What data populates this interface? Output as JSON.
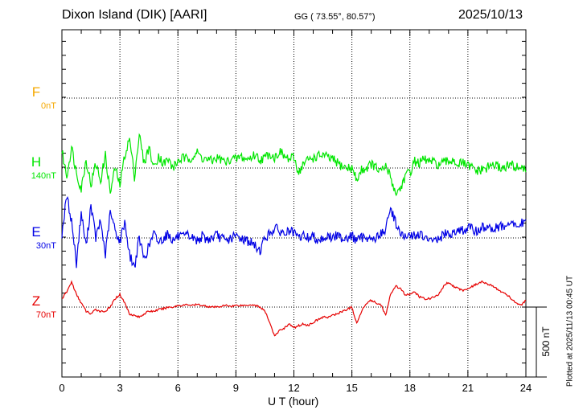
{
  "header": {
    "station": "Dixon Island (DIK)  [AARI]",
    "coords": "GG ( 73.55°,  80.57°)",
    "date": "2025/10/13"
  },
  "plotted_note": "Plotted at 2025/11/13 00:45 UT",
  "chart_data": {
    "type": "line",
    "title": "Dixon Island (DIK)  [AARI]",
    "xlabel": "U T (hour)",
    "xlim": [
      0,
      24
    ],
    "x_ticks": [
      "0",
      "3",
      "6",
      "9",
      "12",
      "15",
      "18",
      "21",
      "24"
    ],
    "x_step_hours": 0.25,
    "scale_bar": {
      "label": "500 nT",
      "value_nT": 500
    },
    "grid": true,
    "series": [
      {
        "name": "F",
        "baseline_label": "0nT",
        "color": "#f5a800",
        "noise_nT": 0,
        "values": []
      },
      {
        "name": "H",
        "baseline_label": "140nT",
        "color": "#00e600",
        "noise_nT": 60,
        "values": [
          120,
          -60,
          150,
          -30,
          -150,
          60,
          -120,
          30,
          -90,
          90,
          -180,
          0,
          -120,
          90,
          210,
          -60,
          240,
          30,
          150,
          0,
          90,
          30,
          60,
          0,
          48,
          72,
          60,
          84,
          108,
          72,
          60,
          48,
          72,
          60,
          36,
          72,
          60,
          84,
          60,
          72,
          96,
          60,
          72,
          108,
          72,
          120,
          84,
          60,
          72,
          -30,
          30,
          60,
          72,
          84,
          96,
          72,
          60,
          36,
          12,
          0,
          0,
          -90,
          -12,
          0,
          30,
          0,
          -30,
          12,
          -60,
          -180,
          -150,
          -60,
          -30,
          48,
          36,
          60,
          48,
          36,
          24,
          36,
          48,
          60,
          24,
          36,
          12,
          0,
          -24,
          -12,
          0,
          24,
          12,
          0,
          12,
          24,
          0,
          12,
          -30
        ]
      },
      {
        "name": "E",
        "baseline_label": "30nT",
        "color": "#0000e6",
        "noise_nT": 60,
        "values": [
          30,
          300,
          120,
          -180,
          180,
          -60,
          240,
          0,
          120,
          -120,
          180,
          60,
          -30,
          120,
          -120,
          -210,
          0,
          -150,
          -60,
          30,
          -30,
          0,
          30,
          -18,
          12,
          0,
          18,
          0,
          -18,
          12,
          -12,
          0,
          18,
          0,
          -24,
          0,
          12,
          0,
          -12,
          -30,
          -60,
          -90,
          0,
          30,
          72,
          48,
          30,
          48,
          30,
          0,
          18,
          0,
          12,
          -12,
          0,
          12,
          0,
          18,
          0,
          6,
          12,
          -18,
          0,
          12,
          -12,
          0,
          30,
          60,
          210,
          120,
          30,
          0,
          12,
          18,
          30,
          0,
          -30,
          0,
          -18,
          30,
          18,
          48,
          60,
          48,
          72,
          60,
          48,
          72,
          84,
          60,
          72,
          84,
          72,
          108,
          84,
          96,
          132
        ]
      },
      {
        "name": "Z",
        "baseline_label": "70nT",
        "color": "#e60000",
        "noise_nT": 12,
        "values": [
          60,
          108,
          180,
          90,
          30,
          -30,
          -48,
          -18,
          -30,
          -30,
          0,
          60,
          90,
          30,
          -48,
          -60,
          -72,
          -48,
          -30,
          -30,
          -18,
          -12,
          0,
          0,
          12,
          12,
          18,
          12,
          18,
          12,
          6,
          0,
          0,
          6,
          12,
          6,
          12,
          12,
          12,
          18,
          12,
          0,
          -30,
          -108,
          -210,
          -168,
          -150,
          -120,
          -150,
          -132,
          -120,
          -132,
          -108,
          -90,
          -72,
          -72,
          -60,
          -48,
          -30,
          -18,
          0,
          -120,
          -30,
          30,
          48,
          30,
          18,
          -60,
          90,
          150,
          132,
          90,
          90,
          108,
          72,
          60,
          60,
          72,
          90,
          150,
          180,
          150,
          132,
          120,
          132,
          150,
          168,
          180,
          168,
          150,
          132,
          108,
          90,
          60,
          30,
          12,
          48
        ]
      }
    ]
  }
}
